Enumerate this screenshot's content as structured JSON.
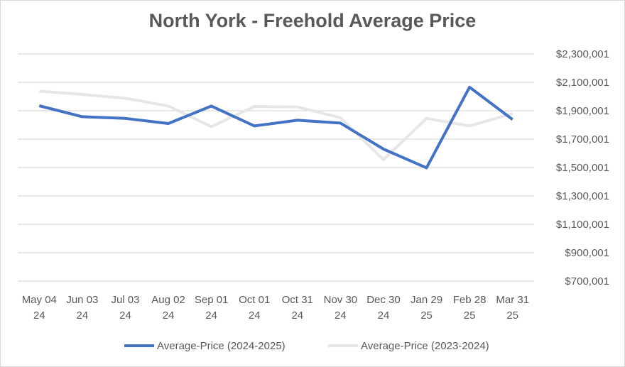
{
  "chart_data": {
    "type": "line",
    "title": "North York - Freehold Average Price",
    "xlabel": "",
    "ylabel": "",
    "categories": [
      [
        "May 04",
        "24"
      ],
      [
        "Jun 03",
        "24"
      ],
      [
        "Jul 03",
        "24"
      ],
      [
        "Aug 02",
        "24"
      ],
      [
        "Sep 01",
        "24"
      ],
      [
        "Oct 01",
        "24"
      ],
      [
        "Oct 31",
        "24"
      ],
      [
        "Nov 30",
        "24"
      ],
      [
        "Dec 30",
        "24"
      ],
      [
        "Jan 29",
        "25"
      ],
      [
        "Feb 28",
        "25"
      ],
      [
        "Mar 31",
        "25"
      ]
    ],
    "ylim": [
      700001,
      2300001
    ],
    "yticks": [
      700001,
      900001,
      1100001,
      1300001,
      1500001,
      1700001,
      1900001,
      2100001,
      2300001
    ],
    "ytick_labels": [
      "$700,001",
      "$900,001",
      "$1,100,001",
      "$1,300,001",
      "$1,500,001",
      "$1,700,001",
      "$1,900,001",
      "$2,100,001",
      "$2,300,001"
    ],
    "grid": true,
    "legend_position": "bottom",
    "series": [
      {
        "name": "Average-Price (2024-2025)",
        "color": "#4472c4",
        "values": [
          1935000,
          1858000,
          1846000,
          1810000,
          1933000,
          1793000,
          1833000,
          1813000,
          1630000,
          1498000,
          2066000,
          1838000
        ]
      },
      {
        "name": "Average-Price (2023-2024)",
        "color": "#e7e6e6",
        "values": [
          2038000,
          2015000,
          1988000,
          1933000,
          1788000,
          1930000,
          1927000,
          1851000,
          1555000,
          1846000,
          1793000,
          1880000
        ]
      }
    ]
  }
}
